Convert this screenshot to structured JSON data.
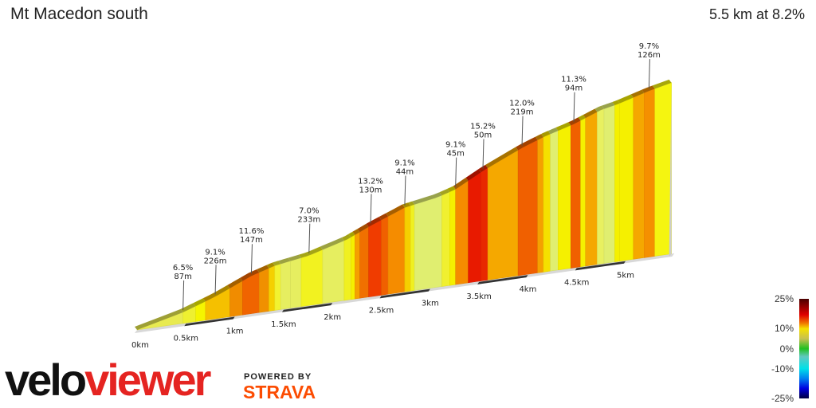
{
  "header": {
    "title": "Mt Macedon south",
    "summary": "5.5 km at 8.2%"
  },
  "branding": {
    "logo_part1": "velo",
    "logo_part2": "viewer",
    "powered_by": "POWERED BY",
    "strava": "STRAVA",
    "logo_color": "#e52421",
    "strava_color": "#fc4c02"
  },
  "legend": {
    "labels": [
      "25%",
      "10%",
      "0%",
      "-10%",
      "-25%"
    ],
    "values": [
      25,
      10,
      0,
      -10,
      -25
    ],
    "stops": [
      {
        "v": 25,
        "c": "#4a0000"
      },
      {
        "v": 17,
        "c": "#e00000"
      },
      {
        "v": 13,
        "c": "#f07000"
      },
      {
        "v": 10,
        "c": "#f5e000"
      },
      {
        "v": 5,
        "c": "#c8c050"
      },
      {
        "v": 0,
        "c": "#20c020"
      },
      {
        "v": -4,
        "c": "#60c8c0"
      },
      {
        "v": -10,
        "c": "#00e0e8"
      },
      {
        "v": -15,
        "c": "#0080f0"
      },
      {
        "v": -20,
        "c": "#0000e0"
      },
      {
        "v": -25,
        "c": "#000040"
      }
    ]
  },
  "chart_data": {
    "type": "area",
    "title": "Mt Macedon south",
    "xlabel": "",
    "ylabel": "",
    "x_unit": "km",
    "xlim": [
      0,
      5.5
    ],
    "x_ticks": [
      0,
      0.5,
      1,
      1.5,
      2,
      2.5,
      3,
      3.5,
      4,
      4.5,
      5
    ],
    "x_tick_labels": [
      "0km",
      "0.5km",
      "1km",
      "1.5km",
      "2km",
      "2.5km",
      "3km",
      "3.5km",
      "4km",
      "4.5km",
      "5km"
    ],
    "profile": {
      "km": [
        0,
        0.47,
        0.8,
        1.17,
        1.41,
        1.76,
        2.15,
        2.39,
        2.74,
        3.08,
        3.26,
        3.54,
        3.94,
        4.18,
        4.47,
        4.75,
        4.92,
        5.24,
        5.47
      ],
      "elev_gain_m": [
        0,
        29,
        58,
        99,
        117,
        131,
        159,
        186,
        221,
        236,
        250,
        288,
        334,
        356,
        377,
        404,
        413,
        436,
        449
      ]
    },
    "segments": {
      "boundaries_km": [
        0,
        0.47,
        0.6,
        0.7,
        0.95,
        1.08,
        1.25,
        1.35,
        1.41,
        1.47,
        1.57,
        1.68,
        1.9,
        2.12,
        2.19,
        2.23,
        2.28,
        2.37,
        2.5,
        2.57,
        2.74,
        2.8,
        2.84,
        3.12,
        3.2,
        3.26,
        3.39,
        3.52,
        3.59,
        3.9,
        4.1,
        4.16,
        4.23,
        4.31,
        4.44,
        4.54,
        4.59,
        4.71,
        4.78,
        4.89,
        4.94,
        5.08,
        5.19,
        5.3,
        5.47
      ],
      "colors": [
        "#e8ea50",
        "#eef030",
        "#f5f500",
        "#f5c000",
        "#f08c00",
        "#f06400",
        "#f09000",
        "#f5d000",
        "#f2f230",
        "#e6ee60",
        "#e6ee60",
        "#f2f220",
        "#e6ee60",
        "#f0f020",
        "#f5f000",
        "#f5a000",
        "#f07000",
        "#f03c00",
        "#f06000",
        "#f58c00",
        "#f5d000",
        "#f0f020",
        "#e0ee70",
        "#f0f030",
        "#f5f000",
        "#f58c00",
        "#e81a00",
        "#e82800",
        "#f5a800",
        "#f06000",
        "#f5a000",
        "#f5e000",
        "#e0ee70",
        "#f5f000",
        "#f06000",
        "#f5f000",
        "#f5a800",
        "#e8f060",
        "#e0ee70",
        "#f5f000",
        "#f5f000",
        "#f5a800",
        "#f59000",
        "#f5f510"
      ]
    },
    "annotations": [
      {
        "km": 0.47,
        "gradient": "6.5%",
        "length": "87m"
      },
      {
        "km": 0.8,
        "gradient": "9.1%",
        "length": "226m"
      },
      {
        "km": 1.17,
        "gradient": "11.6%",
        "length": "147m"
      },
      {
        "km": 1.76,
        "gradient": "7.0%",
        "length": "233m"
      },
      {
        "km": 2.39,
        "gradient": "13.2%",
        "length": "130m"
      },
      {
        "km": 2.74,
        "gradient": "9.1%",
        "length": "44m"
      },
      {
        "km": 3.26,
        "gradient": "9.1%",
        "length": "45m"
      },
      {
        "km": 3.54,
        "gradient": "15.2%",
        "length": "50m"
      },
      {
        "km": 3.94,
        "gradient": "12.0%",
        "length": "219m"
      },
      {
        "km": 4.47,
        "gradient": "11.3%",
        "length": "94m"
      },
      {
        "km": 5.24,
        "gradient": "9.7%",
        "length": "126m"
      }
    ]
  }
}
